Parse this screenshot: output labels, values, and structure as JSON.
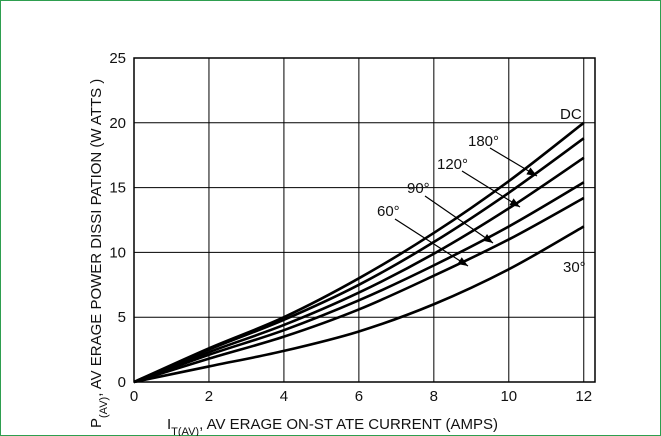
{
  "chart_data": {
    "type": "line",
    "title": "",
    "xlabel": "IT(AV), AVERAGE ON-ST ATE CURRENT (AMPS)",
    "xlabel_parts": {
      "main": "I",
      "sub": "T(AV)",
      "rest": ", AV ERAGE ON-ST    ATE CURRENT (AMPS)"
    },
    "ylabel": "P(AV), AVERAGE POWER DISSI PATION (W ATTS )",
    "ylabel_parts": {
      "main": "P",
      "sub": "(AV)",
      "rest": ", AV ERAGE POWER DISSI      PATION (W   ATTS  )"
    },
    "xlim": [
      0,
      12.3
    ],
    "ylim": [
      0,
      25
    ],
    "x_ticks": [
      0,
      2,
      4,
      6,
      8,
      10,
      12
    ],
    "y_ticks": [
      0,
      5,
      10,
      15,
      20,
      25
    ],
    "grid": true,
    "x": [
      0,
      2,
      4,
      6,
      8,
      10,
      12
    ],
    "series": [
      {
        "name": "DC",
        "values": [
          0,
          2.6,
          5.0,
          8.0,
          11.5,
          15.5,
          20.0
        ]
      },
      {
        "name": "180°",
        "values": [
          0,
          2.5,
          4.8,
          7.5,
          10.8,
          14.6,
          18.8
        ]
      },
      {
        "name": "120°",
        "values": [
          0,
          2.3,
          4.4,
          6.9,
          9.9,
          13.4,
          17.3
        ]
      },
      {
        "name": "90°",
        "values": [
          0,
          2.1,
          4.0,
          6.3,
          9.0,
          12.0,
          15.4
        ]
      },
      {
        "name": "60°",
        "values": [
          0,
          1.8,
          3.5,
          5.6,
          8.2,
          11.0,
          14.2
        ]
      },
      {
        "name": "30°",
        "values": [
          0,
          1.2,
          2.4,
          3.9,
          6.0,
          8.7,
          12.0
        ]
      }
    ],
    "annotations": [
      {
        "text": "DC",
        "series": "DC"
      },
      {
        "text": "180°",
        "series": "180°"
      },
      {
        "text": "120°",
        "series": "120°"
      },
      {
        "text": "90°",
        "series": "90°"
      },
      {
        "text": "60°",
        "series": "60°"
      },
      {
        "text": "30°",
        "series": "30°"
      }
    ],
    "line_color": "#000000",
    "grid_color": "#000000",
    "frame_color": "#2e9e4f"
  }
}
